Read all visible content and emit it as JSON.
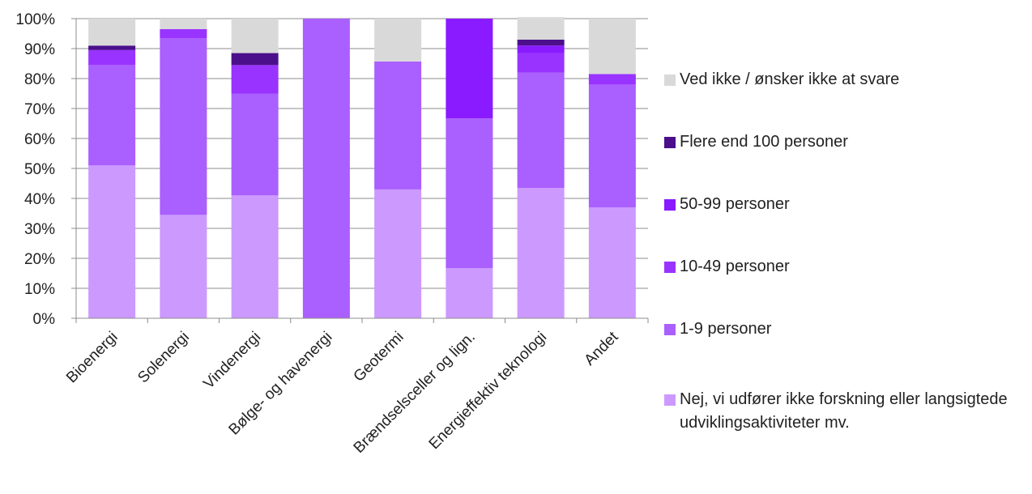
{
  "chart_data": {
    "type": "bar",
    "stacked": true,
    "percent": true,
    "categories": [
      "Bioenergi",
      "Solenergi",
      "Vindenergi",
      "Bølge- og havenergi",
      "Geotermi",
      "Brændselsceller og lign.",
      "Energieffektiv teknologi",
      "Andet"
    ],
    "series": [
      {
        "name": "Nej, vi udfører ikke forskning eller langsigtede udviklingsaktiviteter mv.",
        "color": "#cc99ff",
        "values": [
          51,
          34.5,
          41,
          0,
          43,
          16.7,
          43.5,
          37
        ]
      },
      {
        "name": "1-9 personer",
        "color": "#aa5fff",
        "values": [
          33.5,
          59,
          34,
          100,
          42.7,
          50,
          38.5,
          41
        ]
      },
      {
        "name": "10-49 personer",
        "color": "#9933ff",
        "values": [
          5,
          3,
          9.5,
          0,
          0,
          0,
          6.5,
          3.5
        ]
      },
      {
        "name": "50-99 personer",
        "color": "#8a1aff",
        "values": [
          0,
          0,
          0,
          0,
          0,
          33.3,
          2.5,
          0
        ]
      },
      {
        "name": "Flere end 100 personer",
        "color": "#4b0f8c",
        "values": [
          1.5,
          0,
          4,
          0,
          0,
          0,
          2,
          0
        ]
      },
      {
        "name": "Ved ikke / ønsker ikke at svare",
        "color": "#d9d9d9",
        "values": [
          9,
          3.5,
          11.5,
          0,
          14.3,
          0,
          7.5,
          18.5
        ]
      }
    ],
    "y_ticks": [
      "0%",
      "10%",
      "20%",
      "30%",
      "40%",
      "50%",
      "60%",
      "70%",
      "80%",
      "90%",
      "100%"
    ],
    "ylim": [
      0,
      100
    ],
    "grid": true,
    "legend_position": "right",
    "legend_order": [
      "Ved ikke / ønsker ikke at svare",
      "Flere end 100 personer",
      "50-99 personer",
      "10-49 personer",
      "1-9 personer",
      "Nej, vi udfører ikke forskning eller langsigtede udviklingsaktiviteter mv."
    ],
    "title": "",
    "xlabel": "",
    "ylabel": ""
  }
}
